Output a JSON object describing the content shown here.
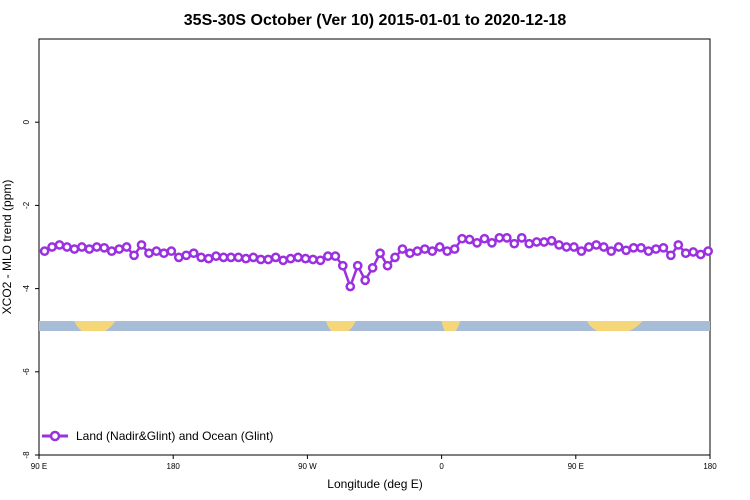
{
  "chart_data": {
    "type": "line",
    "title": "35S-30S October (Ver 10)   2015-01-01 to 2020-12-18",
    "xlabel": "Longitude (deg E)",
    "ylabel": "XCO2 - MLO trend (ppm)",
    "xlim": [
      90,
      450
    ],
    "ylim": [
      -8,
      2
    ],
    "x_ticks": [
      {
        "value": 90,
        "label": "90 E"
      },
      {
        "value": 162,
        "label": "180"
      },
      {
        "value": 234,
        "label": "90 W"
      },
      {
        "value": 306,
        "label": "0"
      },
      {
        "value": 378,
        "label": "90 E"
      },
      {
        "value": 450,
        "label": "180"
      }
    ],
    "y_ticks": [
      {
        "value": 0,
        "label": "0"
      },
      {
        "value": -2,
        "label": "-2"
      },
      {
        "value": -4,
        "label": "-4"
      },
      {
        "value": -6,
        "label": "-6"
      },
      {
        "value": -8,
        "label": "-8"
      }
    ],
    "grid": false,
    "legend_position": "bottom-left",
    "series": [
      {
        "name": "Land (Nadir&Glint) and Ocean (Glint)",
        "color": "#9b30e0",
        "x": [
          93,
          97,
          101,
          105,
          109,
          113,
          117,
          121,
          125,
          129,
          133,
          137,
          141,
          145,
          149,
          153,
          157,
          161,
          165,
          169,
          173,
          177,
          181,
          185,
          189,
          193,
          197,
          201,
          205,
          209,
          213,
          217,
          221,
          225,
          229,
          233,
          237,
          241,
          245,
          249,
          253,
          257,
          261,
          265,
          269,
          273,
          277,
          281,
          285,
          289,
          293,
          297,
          301,
          305,
          309,
          313,
          317,
          321,
          325,
          329,
          333,
          337,
          341,
          345,
          349,
          353,
          357,
          361,
          365,
          369,
          373,
          377,
          381,
          385,
          389,
          393,
          397,
          401,
          405,
          409,
          413,
          417,
          421,
          425,
          429,
          433,
          437,
          441,
          445,
          449
        ],
        "y": [
          -3.1,
          -3.0,
          -2.95,
          -3.0,
          -3.05,
          -3.0,
          -3.05,
          -3.0,
          -3.02,
          -3.1,
          -3.05,
          -3.0,
          -3.2,
          -2.95,
          -3.15,
          -3.1,
          -3.15,
          -3.1,
          -3.25,
          -3.2,
          -3.15,
          -3.25,
          -3.28,
          -3.22,
          -3.25,
          -3.25,
          -3.25,
          -3.28,
          -3.25,
          -3.3,
          -3.3,
          -3.25,
          -3.32,
          -3.28,
          -3.25,
          -3.28,
          -3.3,
          -3.32,
          -3.22,
          -3.22,
          -3.45,
          -3.95,
          -3.45,
          -3.8,
          -3.5,
          -3.15,
          -3.45,
          -3.25,
          -3.05,
          -3.15,
          -3.1,
          -3.05,
          -3.1,
          -3.0,
          -3.1,
          -3.05,
          -2.8,
          -2.82,
          -2.9,
          -2.8,
          -2.9,
          -2.78,
          -2.78,
          -2.92,
          -2.78,
          -2.92,
          -2.88,
          -2.88,
          -2.85,
          -2.95,
          -3.0,
          -3.0,
          -3.1,
          -3.0,
          -2.95,
          -3.0,
          -3.1,
          -3.0,
          -3.08,
          -3.02,
          -3.02,
          -3.1,
          -3.05,
          -3.02,
          -3.2,
          -2.95,
          -3.15,
          -3.12,
          -3.18,
          -3.1
        ]
      }
    ],
    "surface_bar": {
      "y": -4.9,
      "ocean_color": "#a7bcd6",
      "land_color": "#f5d77a",
      "land_spans": [
        [
          109,
          131
        ],
        [
          244,
          260
        ],
        [
          306,
          316
        ],
        [
          384,
          414
        ]
      ]
    }
  }
}
